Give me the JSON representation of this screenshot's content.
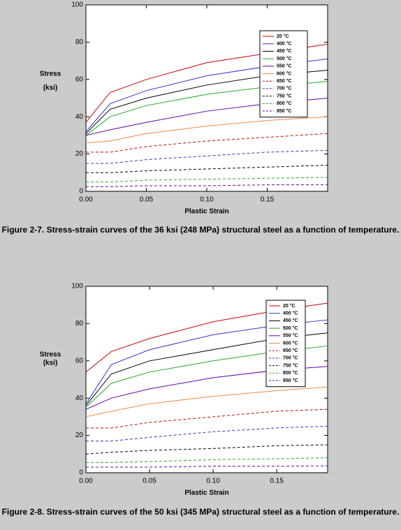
{
  "chart_data": [
    {
      "type": "line",
      "xlabel": "Plastic Strain",
      "ylabel": [
        "Stress",
        "(ksi)"
      ],
      "caption": "Figure 2-7.  Stress-strain curves of the 36 ksi (248 MPa) structural steel as a function of temperature.",
      "x": [
        0,
        0.02,
        0.05,
        0.1,
        0.15,
        0.2
      ],
      "xlim": [
        0,
        0.2
      ],
      "ylim": [
        0,
        100
      ],
      "xticks": [
        {
          "value": 0,
          "label": "0.00"
        },
        {
          "value": 0.05,
          "label": "0.05"
        },
        {
          "value": 0.1,
          "label": "0.10"
        },
        {
          "value": 0.15,
          "label": "0.15"
        }
      ],
      "yticks": [
        0,
        20,
        40,
        60,
        80,
        100
      ],
      "series": [
        {
          "name": "20 °C",
          "color": "#cc0000",
          "dashed": false,
          "values": [
            37,
            53,
            60,
            69,
            74,
            79
          ]
        },
        {
          "name": "400 °C",
          "color": "#3333cc",
          "dashed": false,
          "values": [
            32,
            47,
            54,
            62,
            67,
            71
          ]
        },
        {
          "name": "450 °C",
          "color": "#000000",
          "dashed": false,
          "values": [
            31,
            44,
            50,
            57,
            62,
            65
          ]
        },
        {
          "name": "500 °C",
          "color": "#22aa22",
          "dashed": false,
          "values": [
            30,
            40,
            46,
            52,
            56,
            59
          ]
        },
        {
          "name": "550 °C",
          "color": "#6600aa",
          "dashed": false,
          "values": [
            30,
            33,
            37,
            43,
            47,
            50
          ]
        },
        {
          "name": "600 °C",
          "color": "#ee8844",
          "dashed": false,
          "values": [
            26,
            27,
            31,
            35,
            38,
            40
          ]
        },
        {
          "name": "650 °C",
          "color": "#cc0000",
          "dashed": true,
          "values": [
            21,
            21,
            24,
            27,
            29,
            31
          ]
        },
        {
          "name": "700 °C",
          "color": "#3333cc",
          "dashed": true,
          "values": [
            15,
            15,
            17,
            19,
            21,
            22
          ]
        },
        {
          "name": "750 °C",
          "color": "#000000",
          "dashed": true,
          "values": [
            10,
            10,
            11,
            12,
            13,
            14
          ]
        },
        {
          "name": "800 °C",
          "color": "#22aa22",
          "dashed": true,
          "values": [
            5,
            5,
            6,
            6.5,
            7,
            7.5
          ]
        },
        {
          "name": "850 °C",
          "color": "#6600aa",
          "dashed": true,
          "values": [
            2.5,
            2.5,
            3,
            3,
            3.5,
            3.5
          ]
        }
      ]
    },
    {
      "type": "line",
      "xlabel": "Plastic Strain",
      "ylabel": [
        "Stress",
        "(ksi)"
      ],
      "caption": "Figure 2-8.  Stress-strain curves of the 50 ksi (345 MPa) structural steel as a function of temperature.",
      "x": [
        0,
        0.02,
        0.05,
        0.1,
        0.15,
        0.19
      ],
      "xlim": [
        0,
        0.19
      ],
      "ylim": [
        0,
        100
      ],
      "xticks": [
        {
          "value": 0,
          "label": "0.00"
        },
        {
          "value": 0.05,
          "label": "0.05"
        },
        {
          "value": 0.1,
          "label": "0.10"
        },
        {
          "value": 0.15,
          "label": "0.15"
        }
      ],
      "yticks": [
        0,
        20,
        40,
        60,
        80,
        100
      ],
      "series": [
        {
          "name": "20 °C",
          "color": "#cc0000",
          "dashed": false,
          "values": [
            54,
            65,
            72,
            81,
            87,
            91
          ]
        },
        {
          "name": "400 °C",
          "color": "#3333cc",
          "dashed": false,
          "values": [
            37,
            58,
            66,
            74,
            79,
            82
          ]
        },
        {
          "name": "450 °C",
          "color": "#000000",
          "dashed": false,
          "values": [
            36,
            53,
            60,
            66,
            72,
            75
          ]
        },
        {
          "name": "500 °C",
          "color": "#22aa22",
          "dashed": false,
          "values": [
            35,
            48,
            54,
            60,
            65,
            68
          ]
        },
        {
          "name": "550 °C",
          "color": "#6600aa",
          "dashed": false,
          "values": [
            34,
            40,
            45,
            51,
            55,
            57
          ]
        },
        {
          "name": "600 °C",
          "color": "#ee8844",
          "dashed": false,
          "values": [
            30,
            33,
            37,
            41,
            44,
            46
          ]
        },
        {
          "name": "650 °C",
          "color": "#cc0000",
          "dashed": true,
          "values": [
            24,
            24,
            27,
            30,
            33,
            34
          ]
        },
        {
          "name": "700 °C",
          "color": "#3333cc",
          "dashed": true,
          "values": [
            17,
            17,
            19,
            22,
            24,
            25
          ]
        },
        {
          "name": "750 °C",
          "color": "#000000",
          "dashed": true,
          "values": [
            10,
            11,
            12,
            13,
            14.5,
            15
          ]
        },
        {
          "name": "800 °C",
          "color": "#22aa22",
          "dashed": true,
          "values": [
            5.5,
            5.5,
            6,
            7,
            7.5,
            8
          ]
        },
        {
          "name": "850 °C",
          "color": "#6600aa",
          "dashed": true,
          "values": [
            3,
            3,
            3,
            3.5,
            3.5,
            3.7
          ]
        }
      ]
    }
  ]
}
